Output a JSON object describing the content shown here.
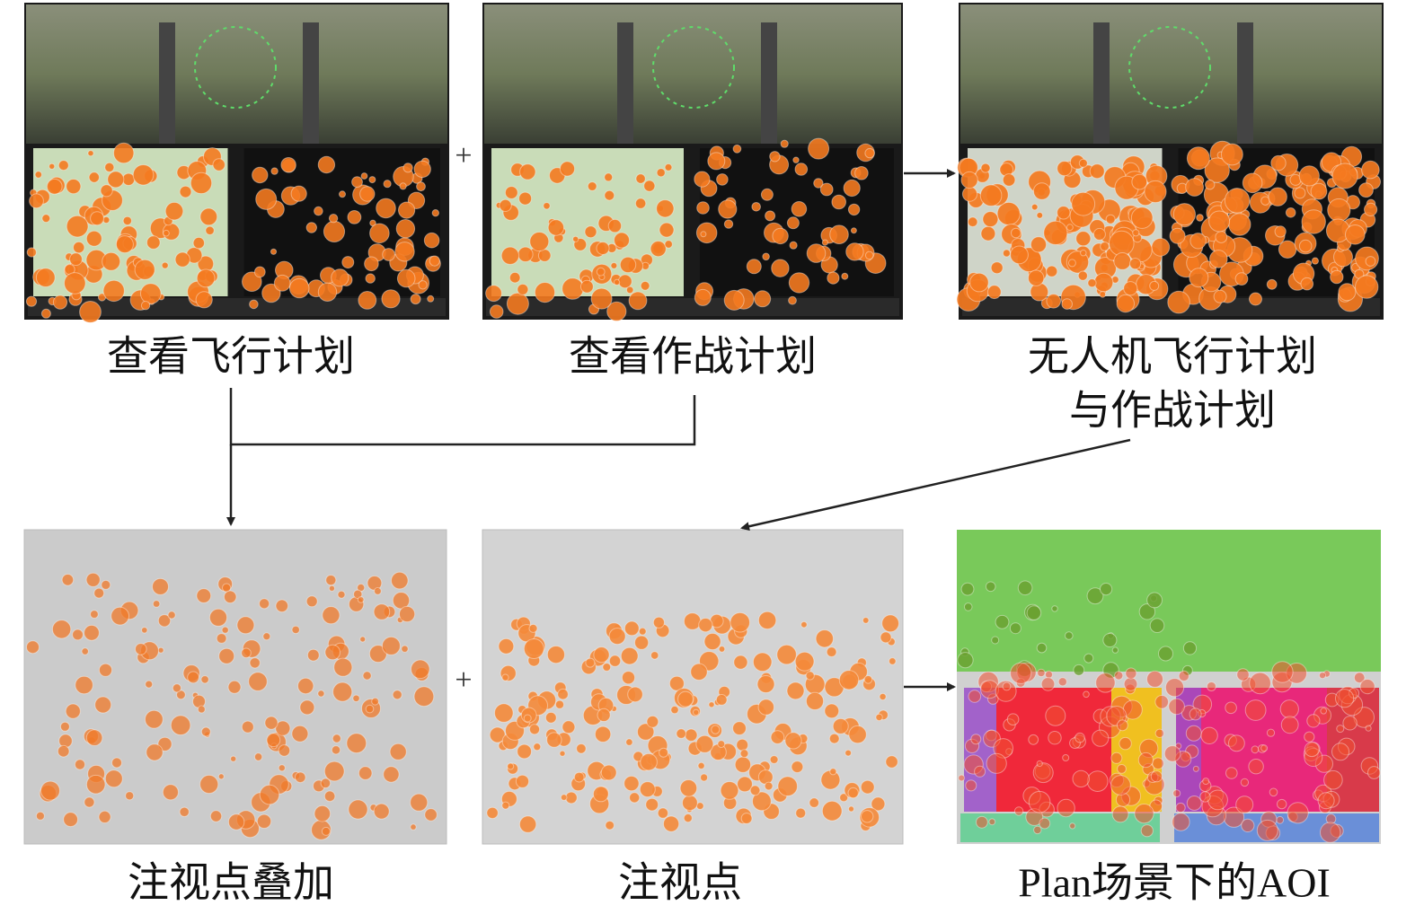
{
  "panels": {
    "top": [
      "查看飞行计划",
      "查看作战计划",
      [
        "无人机飞行计划",
        "与作战计划"
      ]
    ],
    "bottom": [
      "注视点叠加",
      "注视点",
      "Plan场景下的AOI"
    ]
  },
  "operators": [
    "+",
    "+"
  ]
}
